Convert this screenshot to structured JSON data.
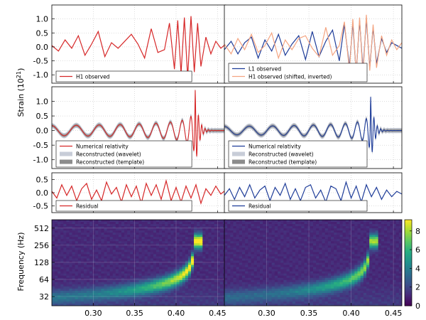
{
  "figure": {
    "ylabel_strain": "Strain (10",
    "ylabel_strain_exp": "21",
    "ylabel_strain_close": ")",
    "ylabel_freq": "Frequency (Hz)"
  },
  "chart_data": [
    {
      "id": "h1-observed",
      "type": "line",
      "xlim": [
        0.25,
        0.46
      ],
      "ylim": [
        -1.3,
        1.5
      ],
      "yticks": [
        -1.0,
        -0.5,
        0.0,
        0.5,
        1.0
      ],
      "ytick_labels": [
        "-1.0",
        "-0.5",
        "0.0",
        "0.5",
        "1.0"
      ],
      "legend": [
        "H1 observed"
      ],
      "series": [
        {
          "name": "H1 observed",
          "color": "#d62728",
          "x": [
            0.25,
            0.258,
            0.266,
            0.274,
            0.282,
            0.29,
            0.298,
            0.306,
            0.314,
            0.322,
            0.33,
            0.338,
            0.346,
            0.354,
            0.362,
            0.37,
            0.378,
            0.386,
            0.392,
            0.398,
            0.402,
            0.406,
            0.41,
            0.414,
            0.418,
            0.422,
            0.426,
            0.43,
            0.436,
            0.442,
            0.448,
            0.454,
            0.46
          ],
          "y": [
            0.05,
            -0.15,
            0.25,
            -0.05,
            0.4,
            -0.3,
            0.1,
            0.55,
            -0.35,
            0.15,
            -0.05,
            0.2,
            0.45,
            0.1,
            -0.4,
            0.65,
            -0.2,
            -0.1,
            0.85,
            -0.8,
            0.95,
            -0.95,
            1.05,
            -1.1,
            1.1,
            -0.9,
            0.85,
            -0.7,
            0.35,
            -0.25,
            0.2,
            -0.05,
            0.1
          ]
        }
      ]
    },
    {
      "id": "l1-observed",
      "type": "line",
      "xlim": [
        0.25,
        0.46
      ],
      "ylim": [
        -1.3,
        1.5
      ],
      "legend": [
        "L1 observed",
        "H1 observed (shifted, inverted)"
      ],
      "series": [
        {
          "name": "L1 observed",
          "color": "#1f3d99",
          "x": [
            0.25,
            0.258,
            0.266,
            0.274,
            0.282,
            0.29,
            0.298,
            0.306,
            0.314,
            0.322,
            0.33,
            0.338,
            0.346,
            0.354,
            0.362,
            0.37,
            0.378,
            0.386,
            0.392,
            0.398,
            0.402,
            0.406,
            0.41,
            0.414,
            0.418,
            0.422,
            0.426,
            0.43,
            0.436,
            0.442,
            0.448,
            0.454,
            0.46
          ],
          "y": [
            -0.1,
            0.2,
            -0.25,
            0.15,
            0.35,
            -0.4,
            0.25,
            -0.15,
            0.45,
            -0.3,
            0.1,
            0.4,
            -0.45,
            0.55,
            -0.35,
            0.2,
            0.6,
            -0.5,
            0.8,
            -0.7,
            0.85,
            -0.95,
            0.95,
            -0.85,
            1.0,
            -0.75,
            0.7,
            -0.6,
            0.3,
            -0.2,
            0.15,
            0.05,
            -0.05
          ]
        },
        {
          "name": "H1 observed (shifted, inverted)",
          "color": "#f4a582",
          "x": [
            0.25,
            0.258,
            0.266,
            0.274,
            0.282,
            0.29,
            0.298,
            0.306,
            0.314,
            0.322,
            0.33,
            0.338,
            0.346,
            0.354,
            0.362,
            0.37,
            0.378,
            0.386,
            0.392,
            0.398,
            0.402,
            0.406,
            0.41,
            0.414,
            0.418,
            0.422,
            0.426,
            0.43,
            0.436,
            0.442,
            0.448,
            0.454,
            0.46
          ],
          "y": [
            0.1,
            -0.25,
            0.3,
            -0.1,
            0.45,
            -0.2,
            0.05,
            0.5,
            -0.4,
            0.25,
            -0.1,
            0.3,
            0.4,
            -0.05,
            -0.35,
            0.7,
            -0.3,
            0.05,
            0.9,
            -0.85,
            1.0,
            -1.0,
            1.05,
            -1.05,
            1.15,
            -0.85,
            0.8,
            -0.75,
            0.4,
            -0.3,
            0.25,
            -0.1,
            0.15
          ]
        }
      ]
    },
    {
      "id": "h1-reconstructed",
      "type": "line",
      "xlim": [
        0.25,
        0.46
      ],
      "ylim": [
        -1.3,
        1.5
      ],
      "yticks": [
        -1.0,
        -0.5,
        0.0,
        0.5,
        1.0
      ],
      "ytick_labels": [
        "-1.0",
        "-0.5",
        "0.0",
        "0.5",
        "1.0"
      ],
      "legend": [
        "Numerical relativity",
        "Reconstructed (wavelet)",
        "Reconstructed (template)"
      ],
      "legend_colors": [
        "#d62728",
        "#c8cdd8",
        "#8c8c8c"
      ],
      "signal": {
        "t_merge": 0.423,
        "tau0": 0.18,
        "f0": 32,
        "amp_scale": 1.2
      },
      "series": [
        {
          "name": "Numerical relativity",
          "color": "#d62728"
        }
      ]
    },
    {
      "id": "l1-reconstructed",
      "type": "line",
      "xlim": [
        0.25,
        0.46
      ],
      "ylim": [
        -1.3,
        1.5
      ],
      "legend": [
        "Numerical relativity",
        "Reconstructed (wavelet)",
        "Reconstructed (template)"
      ],
      "legend_colors": [
        "#1f3d99",
        "#c8cdd8",
        "#8c8c8c"
      ],
      "signal": {
        "t_merge": 0.423,
        "tau0": 0.18,
        "f0": 32,
        "amp_scale": 1.0
      },
      "series": [
        {
          "name": "Numerical relativity",
          "color": "#1f3d99"
        }
      ]
    },
    {
      "id": "h1-residual",
      "type": "line",
      "xlim": [
        0.25,
        0.46
      ],
      "ylim": [
        -0.75,
        0.75
      ],
      "yticks": [
        -0.5,
        0.0,
        0.5
      ],
      "ytick_labels": [
        "-0.5",
        "0.0",
        "0.5"
      ],
      "legend": [
        "Residual"
      ],
      "series": [
        {
          "name": "Residual",
          "color": "#d62728",
          "x": [
            0.25,
            0.256,
            0.262,
            0.268,
            0.274,
            0.28,
            0.286,
            0.292,
            0.298,
            0.304,
            0.31,
            0.316,
            0.322,
            0.328,
            0.334,
            0.34,
            0.346,
            0.352,
            0.358,
            0.364,
            0.37,
            0.376,
            0.382,
            0.388,
            0.394,
            0.4,
            0.406,
            0.412,
            0.418,
            0.424,
            0.43,
            0.436,
            0.442,
            0.448,
            0.454,
            0.46
          ],
          "y": [
            0.05,
            -0.2,
            0.3,
            -0.1,
            0.25,
            -0.3,
            0.15,
            0.35,
            -0.25,
            0.1,
            -0.3,
            0.4,
            -0.05,
            0.2,
            -0.35,
            0.3,
            -0.15,
            0.25,
            -0.4,
            0.35,
            -0.1,
            0.3,
            -0.25,
            0.45,
            -0.3,
            0.2,
            -0.35,
            0.25,
            -0.2,
            0.3,
            -0.4,
            0.15,
            -0.1,
            0.25,
            -0.05,
            0.1
          ]
        }
      ]
    },
    {
      "id": "l1-residual",
      "type": "line",
      "xlim": [
        0.25,
        0.46
      ],
      "ylim": [
        -0.75,
        0.75
      ],
      "legend": [
        "Residual"
      ],
      "series": [
        {
          "name": "Residual",
          "color": "#1f3d99",
          "x": [
            0.25,
            0.256,
            0.262,
            0.268,
            0.274,
            0.28,
            0.286,
            0.292,
            0.298,
            0.304,
            0.31,
            0.316,
            0.322,
            0.328,
            0.334,
            0.34,
            0.346,
            0.352,
            0.358,
            0.364,
            0.37,
            0.376,
            0.382,
            0.388,
            0.394,
            0.4,
            0.406,
            0.412,
            0.418,
            0.424,
            0.43,
            0.436,
            0.442,
            0.448,
            0.454,
            0.46
          ],
          "y": [
            -0.1,
            0.15,
            -0.25,
            0.2,
            -0.15,
            0.3,
            -0.2,
            0.1,
            0.25,
            -0.3,
            0.2,
            -0.1,
            0.35,
            -0.25,
            0.15,
            -0.3,
            0.2,
            0.3,
            -0.2,
            0.1,
            -0.35,
            0.25,
            0.15,
            -0.3,
            0.4,
            -0.2,
            0.25,
            -0.35,
            0.3,
            -0.15,
            0.2,
            -0.25,
            0.1,
            -0.15,
            0.05,
            -0.05
          ]
        }
      ]
    },
    {
      "id": "h1-spectrogram",
      "type": "heatmap",
      "xlim": [
        0.25,
        0.46
      ],
      "y_scale": "log2",
      "ylim": [
        22,
        720
      ],
      "yticks": [
        32,
        64,
        128,
        256,
        512
      ],
      "ytick_labels": [
        "32",
        "64",
        "128",
        "256",
        "512"
      ],
      "xticks": [
        0.3,
        0.35,
        0.4,
        0.45
      ],
      "xtick_labels": [
        "0.30",
        "0.35",
        "0.40",
        "0.45"
      ],
      "colormap": "viridis",
      "track_peak": 9.0
    },
    {
      "id": "l1-spectrogram",
      "type": "heatmap",
      "xlim": [
        0.25,
        0.46
      ],
      "y_scale": "log2",
      "ylim": [
        22,
        720
      ],
      "xticks": [
        0.3,
        0.35,
        0.4,
        0.45
      ],
      "xtick_labels": [
        "0.30",
        "0.35",
        "0.40",
        "0.45"
      ],
      "colormap": "viridis",
      "track_peak": 7.0
    }
  ],
  "colorbar": {
    "range": [
      0,
      9.2
    ],
    "ticks": [
      0,
      2,
      4,
      6,
      8
    ],
    "tick_labels": [
      "0",
      "2",
      "4",
      "6",
      "8"
    ]
  }
}
